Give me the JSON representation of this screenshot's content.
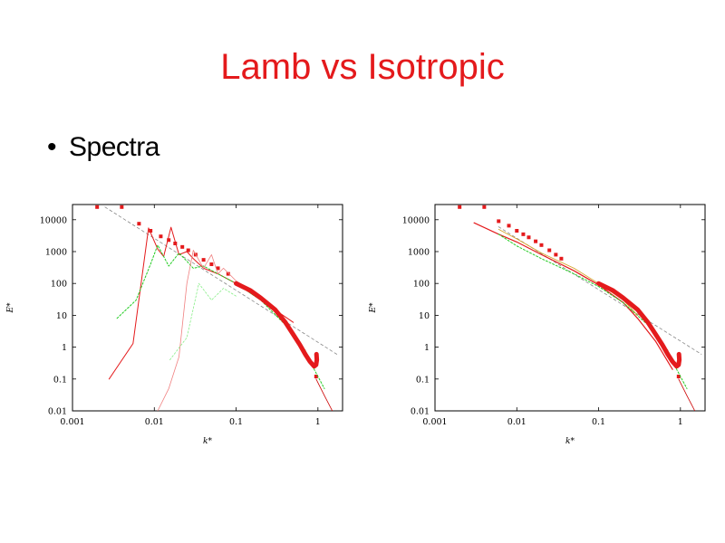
{
  "slide": {
    "title": "Lamb vs Isotropic",
    "bullet": "Spectra",
    "bullet_symbol": "•",
    "title_color": "#e41a1c"
  },
  "chart_data": [
    {
      "type": "line",
      "title": "",
      "xlabel": "k*",
      "ylabel": "E*",
      "xscale": "log",
      "yscale": "log",
      "xlim": [
        0.001,
        2
      ],
      "ylim": [
        0.01,
        30000
      ],
      "x_ticks": [
        0.001,
        0.01,
        0.1,
        1
      ],
      "x_tick_labels": [
        "0.001",
        "0.01",
        "0.1",
        "1"
      ],
      "y_ticks": [
        0.01,
        0.1,
        1,
        10,
        100,
        1000,
        10000
      ],
      "y_tick_labels": [
        "0.01",
        "0.1",
        "1",
        "10",
        "100",
        "1000",
        "10000"
      ],
      "grid": false,
      "legend": "none",
      "series": [
        {
          "style": "line",
          "color": "#888888",
          "dash": "3,3",
          "width": 0.8,
          "x": [
            0.0025,
            1.7
          ],
          "y": [
            25000,
            0.6
          ]
        },
        {
          "style": "markers",
          "color": "#e41a1c",
          "x": [
            0.002,
            0.004,
            0.0065,
            0.009,
            0.012,
            0.015,
            0.018,
            0.022,
            0.026,
            0.032,
            0.04,
            0.05,
            0.06,
            0.08,
            0.95
          ],
          "y": [
            25000,
            25000,
            7500,
            4500,
            3000,
            2300,
            1800,
            1400,
            1100,
            800,
            550,
            400,
            300,
            200,
            0.12
          ]
        },
        {
          "style": "line",
          "color": "#e41a1c",
          "width": 1.0,
          "x": [
            0.0028,
            0.0055,
            0.0085,
            0.011,
            0.013,
            0.016,
            0.02,
            0.025,
            0.03,
            0.04,
            0.06,
            0.1,
            0.2,
            0.5
          ],
          "y": [
            0.1,
            1.3,
            5500,
            1200,
            700,
            5800,
            800,
            1000,
            600,
            300,
            200,
            100,
            30,
            6
          ]
        },
        {
          "style": "line",
          "color": "#22cc22",
          "dash": "2,2",
          "width": 1.0,
          "x": [
            0.0035,
            0.006,
            0.009,
            0.011,
            0.015,
            0.02,
            0.025,
            0.03,
            0.04,
            0.06,
            0.1,
            0.2,
            0.4,
            0.7,
            0.9,
            1.2
          ],
          "y": [
            8,
            30,
            400,
            1600,
            350,
            900,
            500,
            300,
            350,
            200,
            100,
            30,
            5,
            0.8,
            0.2,
            0.05
          ]
        },
        {
          "style": "line",
          "color": "#f08080",
          "width": 0.8,
          "x": [
            0.011,
            0.015,
            0.02,
            0.025,
            0.03,
            0.04,
            0.05,
            0.06,
            0.07,
            0.1,
            0.2
          ],
          "y": [
            0.01,
            0.05,
            0.5,
            100,
            1100,
            300,
            800,
            200,
            300,
            120,
            40
          ]
        },
        {
          "style": "line",
          "color": "#88ee88",
          "dash": "2,2",
          "width": 0.8,
          "x": [
            0.0155,
            0.025,
            0.035,
            0.05,
            0.07,
            0.1
          ],
          "y": [
            0.4,
            2,
            100,
            30,
            70,
            40
          ]
        },
        {
          "style": "line",
          "color": "#e41a1c",
          "width": 5.0,
          "x": [
            0.1,
            0.15,
            0.2,
            0.3,
            0.4,
            0.5,
            0.6,
            0.7,
            0.8,
            0.9,
            0.95,
            0.97,
            0.96
          ],
          "y": [
            100,
            60,
            35,
            15,
            6,
            2.5,
            1.2,
            0.6,
            0.35,
            0.25,
            0.28,
            0.4,
            0.6
          ]
        },
        {
          "style": "line",
          "color": "#cc0000",
          "width": 0.8,
          "x": [
            0.95,
            1.2,
            1.5
          ],
          "y": [
            0.1,
            0.03,
            0.01
          ]
        }
      ]
    },
    {
      "type": "line",
      "title": "",
      "xlabel": "k*",
      "ylabel": "E*",
      "xscale": "log",
      "yscale": "log",
      "xlim": [
        0.001,
        2
      ],
      "ylim": [
        0.01,
        30000
      ],
      "x_ticks": [
        0.001,
        0.01,
        0.1,
        1
      ],
      "x_tick_labels": [
        "0.001",
        "0.01",
        "0.1",
        "1"
      ],
      "y_ticks": [
        0.01,
        0.1,
        1,
        10,
        100,
        1000,
        10000
      ],
      "y_tick_labels": [
        "0.01",
        "0.1",
        "1",
        "10",
        "100",
        "1000",
        "10000"
      ],
      "grid": false,
      "legend": "none",
      "series": [
        {
          "style": "line",
          "color": "#888888",
          "dash": "3,3",
          "width": 0.8,
          "x": [
            0.006,
            1.8
          ],
          "y": [
            6000,
            0.6
          ]
        },
        {
          "style": "markers",
          "color": "#e41a1c",
          "x": [
            0.002,
            0.004,
            0.006,
            0.008,
            0.01,
            0.012,
            0.014,
            0.017,
            0.02,
            0.025,
            0.03,
            0.035,
            0.95
          ],
          "y": [
            25000,
            25000,
            9000,
            6500,
            4500,
            3500,
            2800,
            2100,
            1600,
            1100,
            800,
            600,
            0.12
          ]
        },
        {
          "style": "line",
          "color": "#e41a1c",
          "width": 1.2,
          "x": [
            0.003,
            0.006,
            0.01,
            0.02,
            0.05,
            0.1,
            0.2,
            0.3,
            0.5,
            0.8
          ],
          "y": [
            8000,
            3500,
            2000,
            800,
            250,
            90,
            25,
            8,
            1.5,
            0.2
          ]
        },
        {
          "style": "line",
          "color": "#22cc22",
          "dash": "2,2",
          "width": 1.0,
          "x": [
            0.006,
            0.01,
            0.02,
            0.05,
            0.1,
            0.2,
            0.4,
            0.7,
            0.9,
            1.2
          ],
          "y": [
            3500,
            1500,
            600,
            200,
            80,
            25,
            5,
            0.8,
            0.2,
            0.05
          ]
        },
        {
          "style": "line",
          "color": "#d4a020",
          "width": 0.8,
          "x": [
            0.006,
            0.01,
            0.02,
            0.05,
            0.1,
            0.2,
            0.3
          ],
          "y": [
            5000,
            2500,
            900,
            300,
            100,
            30,
            10
          ]
        },
        {
          "style": "line",
          "color": "#e41a1c",
          "width": 5.0,
          "x": [
            0.1,
            0.15,
            0.2,
            0.3,
            0.4,
            0.5,
            0.6,
            0.7,
            0.8,
            0.9,
            0.95,
            0.97,
            0.96
          ],
          "y": [
            100,
            60,
            35,
            15,
            6,
            2.5,
            1.2,
            0.6,
            0.35,
            0.25,
            0.28,
            0.4,
            0.6
          ]
        },
        {
          "style": "line",
          "color": "#cc0000",
          "width": 0.8,
          "x": [
            0.95,
            1.2,
            1.5
          ],
          "y": [
            0.1,
            0.03,
            0.01
          ]
        }
      ]
    }
  ]
}
